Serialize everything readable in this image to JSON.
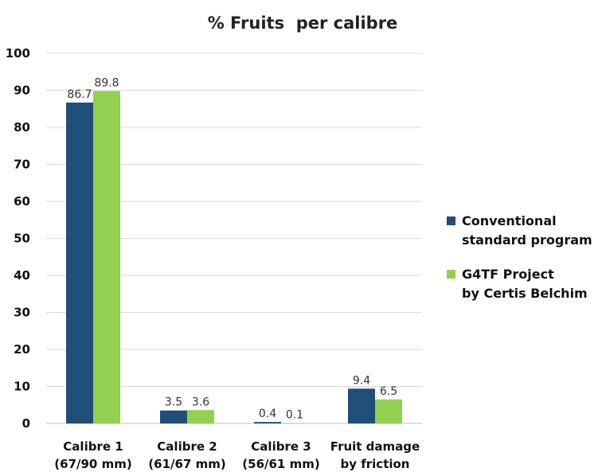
{
  "chart_data": {
    "type": "bar",
    "title": "% Fruits  per calibre",
    "categories": [
      [
        "Calibre 1",
        "(67/90 mm)"
      ],
      [
        "Calibre 2",
        "(61/67 mm)"
      ],
      [
        "Calibre 3",
        "(56/61 mm)"
      ],
      [
        "Fruit damage",
        "by friction"
      ]
    ],
    "series": [
      {
        "name": [
          "Conventional",
          "standard program"
        ],
        "color": "#1F4E79",
        "values": [
          86.7,
          3.5,
          0.4,
          9.4
        ]
      },
      {
        "name": [
          "G4TF Project",
          "by Certis Belchim"
        ],
        "color": "#92D050",
        "values": [
          89.8,
          3.6,
          0.1,
          6.5
        ]
      }
    ],
    "ylim": [
      0,
      100
    ],
    "yticks": [
      0,
      10,
      20,
      30,
      40,
      50,
      60,
      70,
      80,
      90,
      100
    ],
    "grid": true,
    "gridline_color": "#D9D9D9",
    "legend": "right",
    "xlabel": "",
    "ylabel": ""
  }
}
